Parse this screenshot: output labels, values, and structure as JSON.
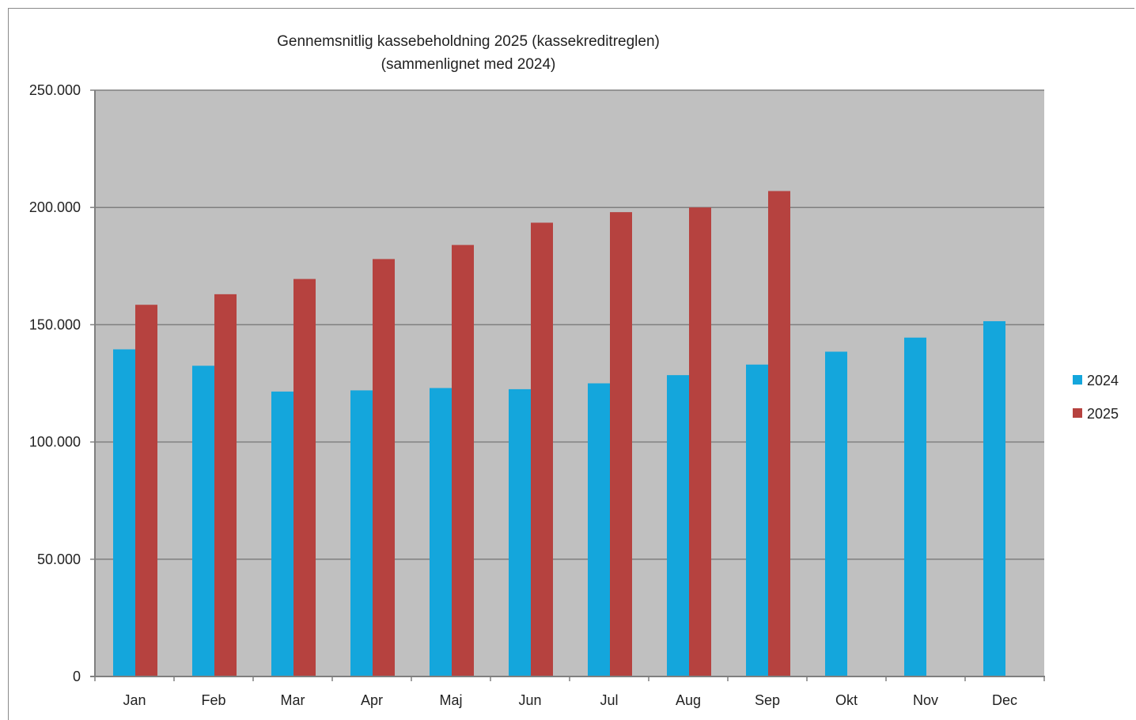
{
  "chart_data": {
    "type": "bar",
    "title": "Gennemsnitlig kassebeholdning 2025 (kassekreditreglen)",
    "subtitle": "(sammenlignet med 2024)",
    "categories": [
      "Jan",
      "Feb",
      "Mar",
      "Apr",
      "Maj",
      "Jun",
      "Jul",
      "Aug",
      "Sep",
      "Okt",
      "Nov",
      "Dec"
    ],
    "series": [
      {
        "name": "2024",
        "color": "#14a6dc",
        "values": [
          139500,
          132500,
          121500,
          122000,
          123000,
          122500,
          125000,
          128500,
          133000,
          138500,
          144500,
          151500
        ]
      },
      {
        "name": "2025",
        "color": "#b6423f",
        "values": [
          158500,
          163000,
          169500,
          178000,
          184000,
          193500,
          198000,
          200000,
          207000,
          null,
          null,
          null
        ]
      }
    ],
    "ylim": [
      0,
      250000
    ],
    "yticks": [
      0,
      50000,
      100000,
      150000,
      200000,
      250000
    ],
    "ytick_labels": [
      "0",
      "50.000",
      "100.000",
      "150.000",
      "200.000",
      "250.000"
    ],
    "grid": true,
    "plot_background": "#c0c0c0",
    "gridline_color": "#7f7f7f",
    "legend_position": "right"
  }
}
